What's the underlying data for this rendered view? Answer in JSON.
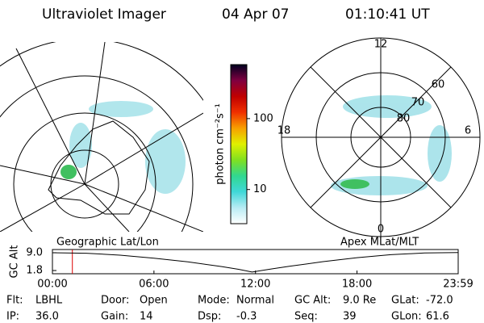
{
  "header": {
    "title": "Ultraviolet Imager",
    "date": "04 Apr 07",
    "time": "01:10:41 UT"
  },
  "left_map": {
    "label": "Geographic Lat/Lon"
  },
  "right_map": {
    "label": "Apex MLat/MLT",
    "mlt_labels": {
      "top": "12",
      "left": "18",
      "right": "6",
      "bottom": "0"
    },
    "mlat_labels": [
      "80",
      "70",
      "60"
    ]
  },
  "info": [
    [
      {
        "label": "Flt:",
        "value": "LBHL"
      },
      {
        "label": "Door:",
        "value": "Open"
      },
      {
        "label": "Mode:",
        "value": "Normal"
      },
      {
        "label": "GC Alt:",
        "value": "9.0 Re"
      },
      {
        "label": "GLat:",
        "value": "-72.0"
      }
    ],
    [
      {
        "label": "IP:",
        "value": "36.0"
      },
      {
        "label": "Gain:",
        "value": "14"
      },
      {
        "label": "Dsp:",
        "value": "-0.3"
      },
      {
        "label": "Seq:",
        "value": "39"
      },
      {
        "label": "GLon:",
        "value": "61.6"
      }
    ]
  ],
  "chart_data": [
    {
      "type": "line",
      "y_label": "GC Alt",
      "x": [
        0,
        2,
        4,
        6,
        8,
        10,
        11,
        11.8,
        13,
        14,
        16,
        18,
        20,
        22,
        23.98
      ],
      "values": [
        9.0,
        8.8,
        8.0,
        6.8,
        5.3,
        3.4,
        2.3,
        1.2,
        2.5,
        3.5,
        5.4,
        7.0,
        8.2,
        8.9,
        9.1
      ],
      "color": "#000000",
      "xlim": [
        0,
        23.98
      ],
      "xticks": [
        {
          "value": 0,
          "label": "00:00"
        },
        {
          "value": 6,
          "label": "06:00"
        },
        {
          "value": 12,
          "label": "12:00"
        },
        {
          "value": 18,
          "label": "18:00"
        },
        {
          "value": 23.98,
          "label": "23:59"
        }
      ],
      "ylim": [
        0.5,
        10.3
      ],
      "yticks": [
        {
          "value": 1.8,
          "label": "1.8"
        },
        {
          "value": 9.0,
          "label": "9.0"
        }
      ],
      "marker_x": 1.178,
      "marker_color": "#dd0000"
    },
    {
      "type": "colorbar",
      "y_label": "photon cm⁻²s⁻¹",
      "log_scale": true,
      "ylim": [
        3.3,
        577
      ],
      "yticks": [
        10,
        100
      ],
      "colors": [
        "#ffffff",
        "#b8ecf4",
        "#40d8d8",
        "#30d890",
        "#80e020",
        "#e0f000",
        "#f8a000",
        "#f03000",
        "#c00000",
        "#800040",
        "#000020"
      ]
    }
  ]
}
